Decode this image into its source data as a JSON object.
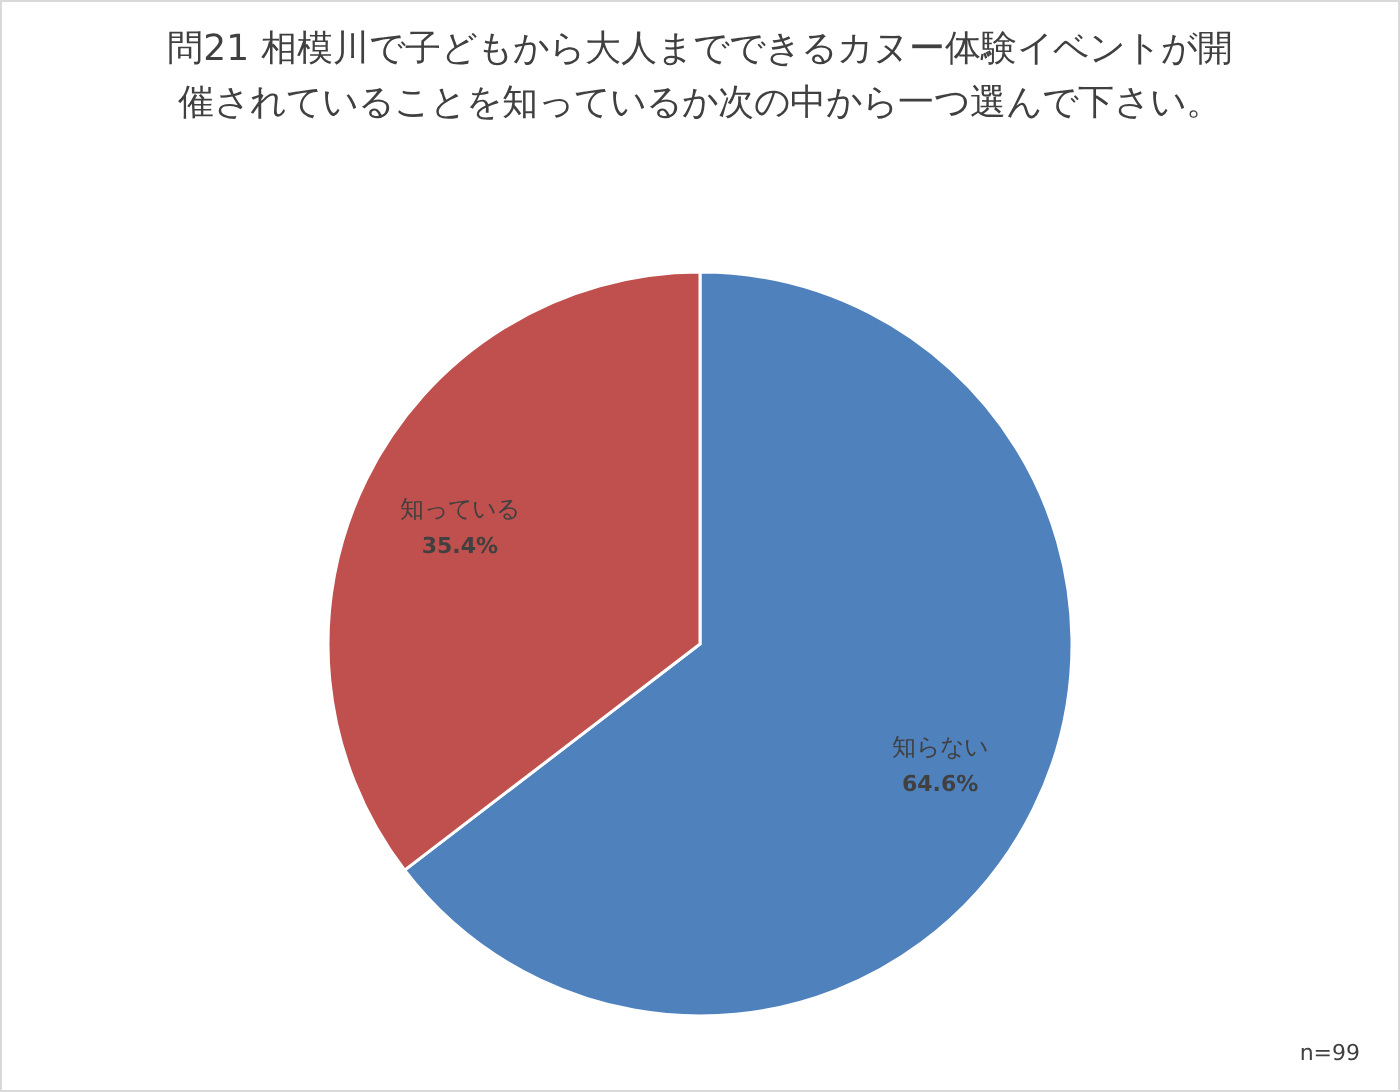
{
  "chart_data": {
    "type": "pie",
    "title": "問21  相模川で子どもから大人までできるカヌー体験イベントが開催されていることを知っているか次の中から一つ選んで下さい。",
    "categories": [
      "知らない",
      "知っている"
    ],
    "values": [
      64.6,
      35.4
    ],
    "colors": [
      "#4f81bd",
      "#c0504d"
    ],
    "value_labels": [
      "64.6%",
      "35.4%"
    ],
    "annotations": [
      "n=99"
    ]
  }
}
